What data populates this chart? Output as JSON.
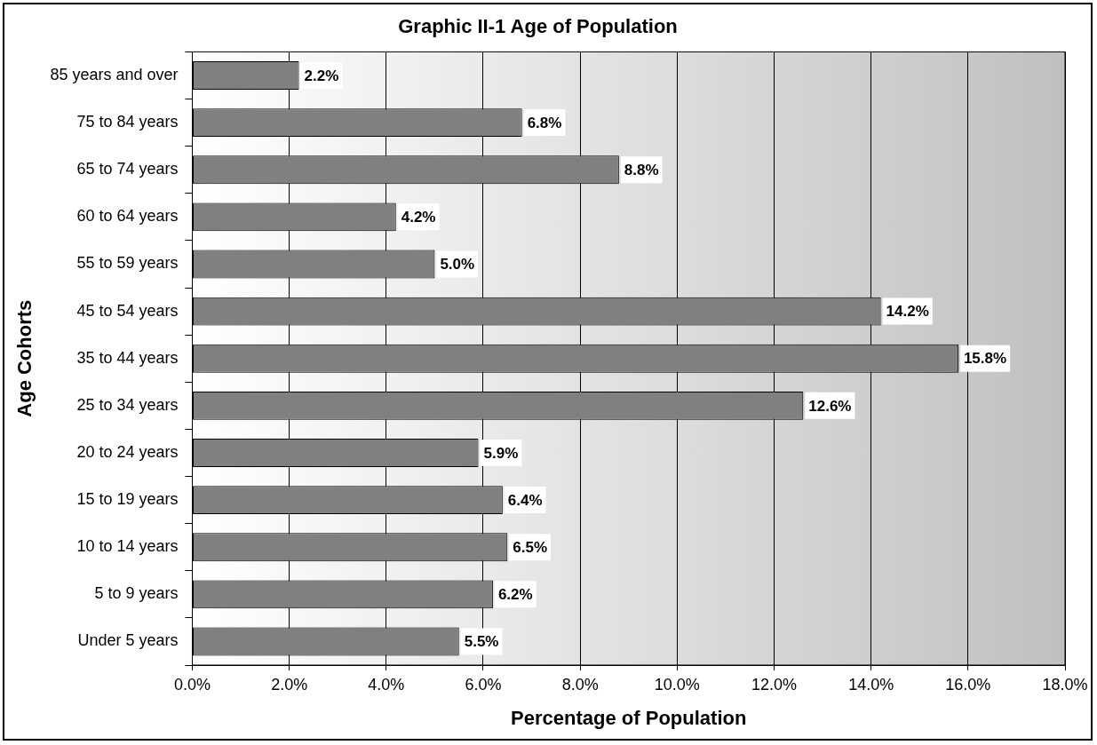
{
  "chart_data": {
    "type": "bar",
    "orientation": "horizontal",
    "title": "Graphic II-1 Age of Population",
    "xlabel": "Percentage of Population",
    "ylabel": "Age Cohorts",
    "categories": [
      "85 years and over",
      "75 to 84 years",
      "65 to 74 years",
      "60 to 64 years",
      "55 to 59 years",
      "45 to 54 years",
      "35 to 44 years",
      "25 to 34 years",
      "20 to 24 years",
      "15 to 19 years",
      "10 to 14 years",
      "5 to 9 years",
      "Under 5 years"
    ],
    "values": [
      2.2,
      6.8,
      8.8,
      4.2,
      5.0,
      14.2,
      15.8,
      12.6,
      5.9,
      6.4,
      6.5,
      6.2,
      5.5
    ],
    "value_labels": [
      "2.2%",
      "6.8%",
      "8.8%",
      "4.2%",
      "5.0%",
      "14.2%",
      "15.8%",
      "12.6%",
      "5.9%",
      "6.4%",
      "6.5%",
      "6.2%",
      "5.5%"
    ],
    "color": "#808080",
    "xlim": [
      0,
      18
    ],
    "xticks": [
      {
        "value": 0,
        "label": "0.0%"
      },
      {
        "value": 2,
        "label": "2.0%"
      },
      {
        "value": 4,
        "label": "4.0%"
      },
      {
        "value": 6,
        "label": "6.0%"
      },
      {
        "value": 8,
        "label": "8.0%"
      },
      {
        "value": 10,
        "label": "10.0%"
      },
      {
        "value": 12,
        "label": "12.0%"
      },
      {
        "value": 14,
        "label": "14.0%"
      },
      {
        "value": 16,
        "label": "16.0%"
      },
      {
        "value": 18,
        "label": "18.0%"
      }
    ],
    "grid": "x",
    "legend": false
  }
}
